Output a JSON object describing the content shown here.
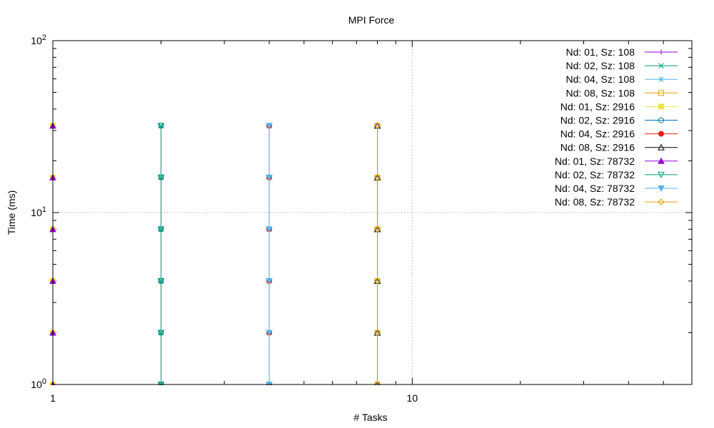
{
  "chart_data": {
    "type": "line",
    "title": "MPI Force",
    "xlabel": "# Tasks",
    "ylabel": "Time (ms)",
    "xscale": "log",
    "yscale": "log",
    "xlim": [
      1,
      60
    ],
    "ylim": [
      1,
      100
    ],
    "x_ticks": [
      {
        "value": 1,
        "label": "1"
      },
      {
        "value": 10,
        "label": "10"
      }
    ],
    "y_ticks": [
      {
        "value": 1,
        "base": "10",
        "exp": "0"
      },
      {
        "value": 10,
        "base": "10",
        "exp": "1"
      },
      {
        "value": 100,
        "base": "10",
        "exp": "2"
      }
    ],
    "grid": true,
    "legend_position": "top-right",
    "series": [
      {
        "name": "Nd: 01, Sz: 108",
        "color": "#9400d3",
        "marker": "plus",
        "x": [
          1,
          1,
          1,
          1,
          1,
          1
        ],
        "y": [
          1,
          2,
          4,
          8,
          16,
          32
        ]
      },
      {
        "name": "Nd: 02, Sz: 108",
        "color": "#009e73",
        "marker": "cross",
        "x": [
          2,
          2,
          2,
          2,
          2,
          2
        ],
        "y": [
          1,
          2,
          4,
          8,
          16,
          32
        ]
      },
      {
        "name": "Nd: 04, Sz: 108",
        "color": "#56b4e9",
        "marker": "star",
        "x": [
          4,
          4,
          4,
          4,
          4,
          4
        ],
        "y": [
          1,
          2,
          4,
          8,
          16,
          32
        ]
      },
      {
        "name": "Nd: 08, Sz: 108",
        "color": "#e69f00",
        "marker": "square",
        "x": [
          8,
          8,
          8,
          8,
          8,
          8
        ],
        "y": [
          1,
          2,
          4,
          8,
          16,
          32
        ]
      },
      {
        "name": "Nd: 01, Sz: 2916",
        "color": "#f0e442",
        "marker": "square-filled",
        "x": [
          1,
          1,
          1,
          1,
          1,
          1
        ],
        "y": [
          1,
          2,
          4,
          8,
          16,
          32
        ]
      },
      {
        "name": "Nd: 02, Sz: 2916",
        "color": "#0072b2",
        "marker": "circle",
        "x": [
          2,
          2,
          2,
          2,
          2,
          2
        ],
        "y": [
          1,
          2,
          4,
          8,
          16,
          32
        ]
      },
      {
        "name": "Nd: 04, Sz: 2916",
        "color": "#e51e10",
        "marker": "circle-filled",
        "x": [
          4,
          4,
          4,
          4,
          4,
          4
        ],
        "y": [
          1,
          2,
          4,
          8,
          16,
          32
        ]
      },
      {
        "name": "Nd: 08, Sz: 2916",
        "color": "#000000",
        "marker": "triangle",
        "x": [
          8,
          8,
          8,
          8,
          8,
          8
        ],
        "y": [
          1,
          2,
          4,
          8,
          16,
          32
        ]
      },
      {
        "name": "Nd: 01, Sz: 78732",
        "color": "#9400d3",
        "marker": "triangle-filled",
        "x": [
          1,
          1,
          1,
          1,
          1,
          1
        ],
        "y": [
          1,
          2,
          4,
          8,
          16,
          32
        ]
      },
      {
        "name": "Nd: 02, Sz: 78732",
        "color": "#009e73",
        "marker": "triangle-down",
        "x": [
          2,
          2,
          2,
          2,
          2,
          2
        ],
        "y": [
          1,
          2,
          4,
          8,
          16,
          32
        ]
      },
      {
        "name": "Nd: 04, Sz: 78732",
        "color": "#56b4e9",
        "marker": "triangle-down-filled",
        "x": [
          4,
          4,
          4,
          4,
          4,
          4
        ],
        "y": [
          1,
          2,
          4,
          8,
          16,
          32
        ]
      },
      {
        "name": "Nd: 08, Sz: 78732",
        "color": "#e69f00",
        "marker": "diamond",
        "x": [
          8,
          8,
          8,
          8,
          8,
          8
        ],
        "y": [
          1,
          2,
          4,
          8,
          16,
          32
        ]
      }
    ]
  }
}
